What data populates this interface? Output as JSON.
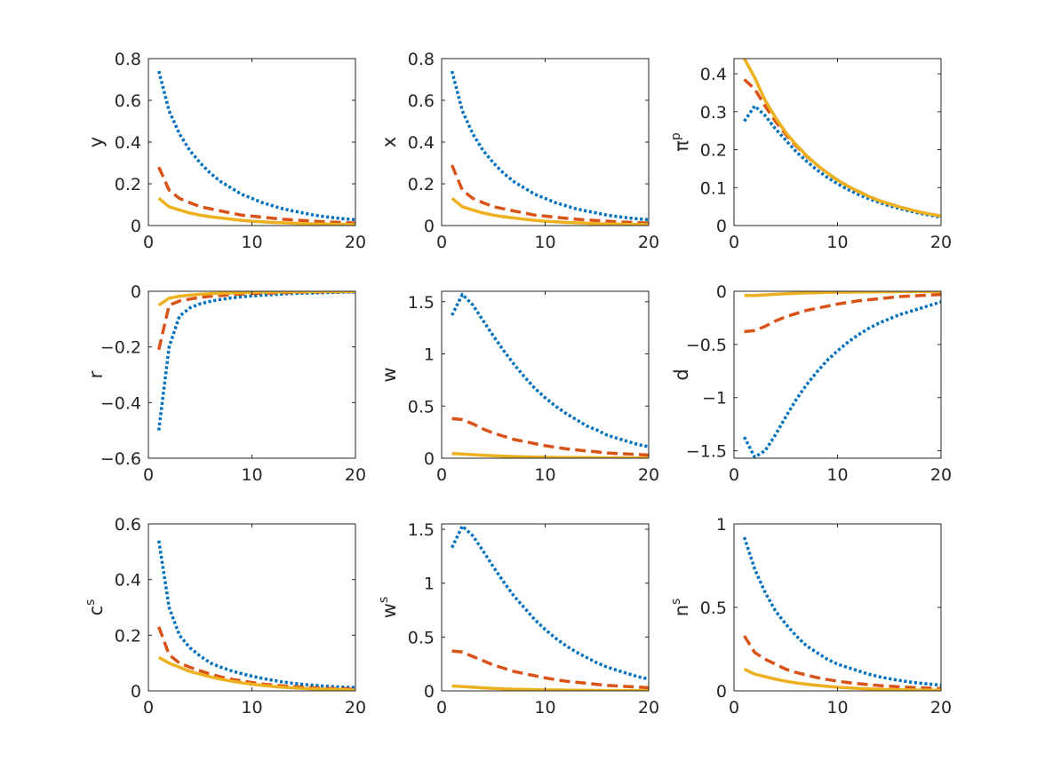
{
  "chart_data": [
    {
      "type": "line",
      "ylabel": "y",
      "ylabel_sup": "",
      "xlim": [
        0,
        20
      ],
      "ylim": [
        0,
        0.8
      ],
      "xticks": [
        "0",
        "10",
        "20"
      ],
      "yticks": [
        0,
        0.2,
        0.4,
        0.6,
        0.8
      ],
      "yticklabels": [
        "0",
        "0.2",
        "0.4",
        "0.6",
        "0.8"
      ],
      "x": [
        1,
        2,
        3,
        4,
        5,
        6,
        7,
        8,
        9,
        10,
        11,
        12,
        13,
        14,
        15,
        16,
        17,
        18,
        19,
        20
      ],
      "series": [
        {
          "style": "dotted",
          "color": "#0072BD",
          "values": [
            0.74,
            0.55,
            0.44,
            0.36,
            0.3,
            0.25,
            0.21,
            0.18,
            0.15,
            0.13,
            0.11,
            0.095,
            0.08,
            0.07,
            0.06,
            0.05,
            0.043,
            0.037,
            0.032,
            0.028
          ]
        },
        {
          "style": "dashed",
          "color": "#D95319",
          "values": [
            0.28,
            0.17,
            0.13,
            0.11,
            0.09,
            0.08,
            0.07,
            0.06,
            0.05,
            0.045,
            0.04,
            0.035,
            0.03,
            0.027,
            0.024,
            0.021,
            0.018,
            0.016,
            0.014,
            0.012
          ]
        },
        {
          "style": "solid",
          "color": "#EDB120",
          "values": [
            0.13,
            0.09,
            0.075,
            0.06,
            0.05,
            0.042,
            0.036,
            0.03,
            0.025,
            0.021,
            0.018,
            0.015,
            0.013,
            0.011,
            0.009,
            0.008,
            0.007,
            0.006,
            0.005,
            0.004
          ]
        }
      ]
    },
    {
      "type": "line",
      "ylabel": "x",
      "ylabel_sup": "",
      "xlim": [
        0,
        20
      ],
      "ylim": [
        0,
        0.8
      ],
      "xticks": [
        "0",
        "10",
        "20"
      ],
      "yticks": [
        0,
        0.2,
        0.4,
        0.6,
        0.8
      ],
      "yticklabels": [
        "0",
        "0.2",
        "0.4",
        "0.6",
        "0.8"
      ],
      "x": [
        1,
        2,
        3,
        4,
        5,
        6,
        7,
        8,
        9,
        10,
        11,
        12,
        13,
        14,
        15,
        16,
        17,
        18,
        19,
        20
      ],
      "series": [
        {
          "style": "dotted",
          "color": "#0072BD",
          "values": [
            0.74,
            0.55,
            0.44,
            0.36,
            0.3,
            0.25,
            0.21,
            0.18,
            0.15,
            0.13,
            0.11,
            0.095,
            0.08,
            0.07,
            0.06,
            0.05,
            0.043,
            0.037,
            0.032,
            0.028
          ]
        },
        {
          "style": "dashed",
          "color": "#D95319",
          "values": [
            0.29,
            0.17,
            0.13,
            0.11,
            0.09,
            0.08,
            0.07,
            0.06,
            0.05,
            0.045,
            0.04,
            0.035,
            0.03,
            0.027,
            0.024,
            0.021,
            0.018,
            0.016,
            0.014,
            0.012
          ]
        },
        {
          "style": "solid",
          "color": "#EDB120",
          "values": [
            0.13,
            0.09,
            0.075,
            0.06,
            0.05,
            0.042,
            0.036,
            0.03,
            0.025,
            0.021,
            0.018,
            0.015,
            0.013,
            0.011,
            0.009,
            0.008,
            0.007,
            0.006,
            0.005,
            0.004
          ]
        }
      ]
    },
    {
      "type": "line",
      "ylabel": "π",
      "ylabel_sup": "p",
      "xlim": [
        0,
        20
      ],
      "ylim": [
        0,
        0.44
      ],
      "xticks": [
        "0",
        "10",
        "20"
      ],
      "yticks": [
        0,
        0.1,
        0.2,
        0.3,
        0.4
      ],
      "yticklabels": [
        "0",
        "0.1",
        "0.2",
        "0.3",
        "0.4"
      ],
      "x": [
        1,
        2,
        3,
        4,
        5,
        6,
        7,
        8,
        9,
        10,
        11,
        12,
        13,
        14,
        15,
        16,
        17,
        18,
        19,
        20
      ],
      "series": [
        {
          "style": "dotted",
          "color": "#0072BD",
          "values": [
            0.275,
            0.315,
            0.29,
            0.255,
            0.225,
            0.195,
            0.17,
            0.147,
            0.127,
            0.11,
            0.095,
            0.082,
            0.071,
            0.061,
            0.052,
            0.045,
            0.038,
            0.032,
            0.027,
            0.022
          ]
        },
        {
          "style": "dashed",
          "color": "#D95319",
          "values": [
            0.385,
            0.36,
            0.315,
            0.275,
            0.24,
            0.21,
            0.183,
            0.16,
            0.138,
            0.12,
            0.104,
            0.09,
            0.077,
            0.066,
            0.057,
            0.049,
            0.042,
            0.035,
            0.03,
            0.025
          ]
        },
        {
          "style": "solid",
          "color": "#EDB120",
          "values": [
            0.44,
            0.39,
            0.33,
            0.285,
            0.245,
            0.213,
            0.185,
            0.16,
            0.139,
            0.12,
            0.104,
            0.09,
            0.077,
            0.066,
            0.057,
            0.049,
            0.042,
            0.035,
            0.03,
            0.025
          ]
        }
      ]
    },
    {
      "type": "line",
      "ylabel": "r",
      "ylabel_sup": "",
      "xlim": [
        0,
        20
      ],
      "ylim": [
        -0.6,
        0
      ],
      "xticks": [
        "0",
        "10",
        "20"
      ],
      "yticks": [
        -0.6,
        -0.4,
        -0.2,
        0
      ],
      "yticklabels": [
        "−0.6",
        "−0.4",
        "−0.2",
        "0"
      ],
      "x": [
        1,
        2,
        3,
        4,
        5,
        6,
        7,
        8,
        9,
        10,
        11,
        12,
        13,
        14,
        15,
        16,
        17,
        18,
        19,
        20
      ],
      "series": [
        {
          "style": "dotted",
          "color": "#0072BD",
          "values": [
            -0.5,
            -0.2,
            -0.09,
            -0.06,
            -0.045,
            -0.036,
            -0.029,
            -0.024,
            -0.02,
            -0.017,
            -0.014,
            -0.012,
            -0.01,
            -0.008,
            -0.007,
            -0.006,
            -0.005,
            -0.004,
            -0.003,
            -0.003
          ]
        },
        {
          "style": "dashed",
          "color": "#D95319",
          "values": [
            -0.21,
            -0.05,
            -0.035,
            -0.028,
            -0.022,
            -0.018,
            -0.015,
            -0.012,
            -0.01,
            -0.008,
            -0.007,
            -0.006,
            -0.005,
            -0.004,
            -0.003,
            -0.003,
            -0.002,
            -0.002,
            -0.002,
            -0.001
          ]
        },
        {
          "style": "solid",
          "color": "#EDB120",
          "values": [
            -0.05,
            -0.025,
            -0.018,
            -0.014,
            -0.011,
            -0.009,
            -0.007,
            -0.006,
            -0.005,
            -0.004,
            -0.003,
            -0.003,
            -0.002,
            -0.002,
            -0.002,
            -0.001,
            -0.001,
            -0.001,
            -0.001,
            -0.001
          ]
        }
      ]
    },
    {
      "type": "line",
      "ylabel": "w",
      "ylabel_sup": "",
      "xlim": [
        0,
        20
      ],
      "ylim": [
        0,
        1.6
      ],
      "xticks": [
        "0",
        "10",
        "20"
      ],
      "yticks": [
        0,
        0.5,
        1,
        1.5
      ],
      "yticklabels": [
        "0",
        "0.5",
        "1",
        "1.5"
      ],
      "x": [
        1,
        2,
        3,
        4,
        5,
        6,
        7,
        8,
        9,
        10,
        11,
        12,
        13,
        14,
        15,
        16,
        17,
        18,
        19,
        20
      ],
      "series": [
        {
          "style": "dotted",
          "color": "#0072BD",
          "values": [
            1.37,
            1.57,
            1.47,
            1.32,
            1.17,
            1.03,
            0.9,
            0.78,
            0.67,
            0.58,
            0.5,
            0.43,
            0.37,
            0.31,
            0.27,
            0.22,
            0.19,
            0.16,
            0.13,
            0.11
          ]
        },
        {
          "style": "dashed",
          "color": "#D95319",
          "values": [
            0.38,
            0.37,
            0.33,
            0.28,
            0.24,
            0.21,
            0.18,
            0.16,
            0.14,
            0.12,
            0.105,
            0.09,
            0.08,
            0.07,
            0.06,
            0.05,
            0.045,
            0.04,
            0.035,
            0.03
          ]
        },
        {
          "style": "solid",
          "color": "#EDB120",
          "values": [
            0.045,
            0.04,
            0.034,
            0.028,
            0.023,
            0.019,
            0.016,
            0.013,
            0.011,
            0.009,
            0.008,
            0.007,
            0.006,
            0.005,
            0.004,
            0.003,
            0.003,
            0.002,
            0.002,
            0.002
          ]
        }
      ]
    },
    {
      "type": "line",
      "ylabel": "d",
      "ylabel_sup": "",
      "xlim": [
        0,
        20
      ],
      "ylim": [
        -1.57,
        0
      ],
      "xticks": [
        "0",
        "10",
        "20"
      ],
      "yticks": [
        -1.5,
        -1,
        -0.5,
        0
      ],
      "yticklabels": [
        "−1.5",
        "−1",
        "−0.5",
        "0"
      ],
      "x": [
        1,
        2,
        3,
        4,
        5,
        6,
        7,
        8,
        9,
        10,
        11,
        12,
        13,
        14,
        15,
        16,
        17,
        18,
        19,
        20
      ],
      "series": [
        {
          "style": "dotted",
          "color": "#0072BD",
          "values": [
            -1.37,
            -1.56,
            -1.5,
            -1.35,
            -1.18,
            -1.02,
            -0.88,
            -0.76,
            -0.65,
            -0.56,
            -0.48,
            -0.41,
            -0.35,
            -0.3,
            -0.26,
            -0.22,
            -0.19,
            -0.16,
            -0.13,
            -0.1
          ]
        },
        {
          "style": "dashed",
          "color": "#D95319",
          "values": [
            -0.38,
            -0.37,
            -0.33,
            -0.28,
            -0.24,
            -0.21,
            -0.18,
            -0.16,
            -0.14,
            -0.12,
            -0.105,
            -0.09,
            -0.08,
            -0.07,
            -0.06,
            -0.05,
            -0.045,
            -0.04,
            -0.035,
            -0.03
          ]
        },
        {
          "style": "solid",
          "color": "#EDB120",
          "values": [
            -0.04,
            -0.04,
            -0.034,
            -0.028,
            -0.023,
            -0.019,
            -0.016,
            -0.013,
            -0.011,
            -0.009,
            -0.008,
            -0.007,
            -0.006,
            -0.005,
            -0.004,
            -0.003,
            -0.003,
            -0.002,
            -0.002,
            -0.002
          ]
        }
      ]
    },
    {
      "type": "line",
      "ylabel": "c",
      "ylabel_sup": "s",
      "xlim": [
        0,
        20
      ],
      "ylim": [
        0,
        0.6
      ],
      "xticks": [
        "0",
        "10",
        "20"
      ],
      "yticks": [
        0,
        0.2,
        0.4,
        0.6
      ],
      "yticklabels": [
        "0",
        "0.2",
        "0.4",
        "0.6"
      ],
      "x": [
        1,
        2,
        3,
        4,
        5,
        6,
        7,
        8,
        9,
        10,
        11,
        12,
        13,
        14,
        15,
        16,
        17,
        18,
        19,
        20
      ],
      "series": [
        {
          "style": "dotted",
          "color": "#0072BD",
          "values": [
            0.54,
            0.3,
            0.2,
            0.155,
            0.125,
            0.1,
            0.085,
            0.072,
            0.062,
            0.053,
            0.045,
            0.038,
            0.032,
            0.027,
            0.023,
            0.02,
            0.017,
            0.015,
            0.013,
            0.012
          ]
        },
        {
          "style": "dashed",
          "color": "#D95319",
          "values": [
            0.23,
            0.13,
            0.1,
            0.085,
            0.072,
            0.06,
            0.05,
            0.042,
            0.036,
            0.03,
            0.025,
            0.021,
            0.018,
            0.015,
            0.013,
            0.011,
            0.009,
            0.008,
            0.007,
            0.006
          ]
        },
        {
          "style": "solid",
          "color": "#EDB120",
          "values": [
            0.12,
            0.1,
            0.085,
            0.07,
            0.06,
            0.05,
            0.042,
            0.035,
            0.029,
            0.024,
            0.02,
            0.016,
            0.013,
            0.011,
            0.009,
            0.007,
            0.006,
            0.005,
            0.004,
            0.003
          ]
        }
      ]
    },
    {
      "type": "line",
      "ylabel": "w",
      "ylabel_sup": "s",
      "xlim": [
        0,
        20
      ],
      "ylim": [
        0,
        1.55
      ],
      "xticks": [
        "0",
        "10",
        "20"
      ],
      "yticks": [
        0,
        0.5,
        1,
        1.5
      ],
      "yticklabels": [
        "0",
        "0.5",
        "1",
        "1.5"
      ],
      "x": [
        1,
        2,
        3,
        4,
        5,
        6,
        7,
        8,
        9,
        10,
        11,
        12,
        13,
        14,
        15,
        16,
        17,
        18,
        19,
        20
      ],
      "series": [
        {
          "style": "dotted",
          "color": "#0072BD",
          "values": [
            1.33,
            1.53,
            1.44,
            1.3,
            1.15,
            1.01,
            0.88,
            0.77,
            0.66,
            0.57,
            0.49,
            0.42,
            0.36,
            0.31,
            0.26,
            0.22,
            0.19,
            0.16,
            0.13,
            0.11
          ]
        },
        {
          "style": "dashed",
          "color": "#D95319",
          "values": [
            0.37,
            0.36,
            0.32,
            0.28,
            0.24,
            0.21,
            0.18,
            0.16,
            0.14,
            0.12,
            0.105,
            0.09,
            0.08,
            0.07,
            0.06,
            0.05,
            0.045,
            0.04,
            0.035,
            0.03
          ]
        },
        {
          "style": "solid",
          "color": "#EDB120",
          "values": [
            0.045,
            0.04,
            0.034,
            0.028,
            0.023,
            0.019,
            0.016,
            0.013,
            0.011,
            0.009,
            0.008,
            0.007,
            0.006,
            0.005,
            0.004,
            0.003,
            0.003,
            0.002,
            0.002,
            0.002
          ]
        }
      ]
    },
    {
      "type": "line",
      "ylabel": "n",
      "ylabel_sup": "s",
      "xlim": [
        0,
        20
      ],
      "ylim": [
        0,
        1
      ],
      "xticks": [
        "0",
        "10",
        "20"
      ],
      "yticks": [
        0,
        0.5,
        1
      ],
      "yticklabels": [
        "0",
        "0.5",
        "1"
      ],
      "x": [
        1,
        2,
        3,
        4,
        5,
        6,
        7,
        8,
        9,
        10,
        11,
        12,
        13,
        14,
        15,
        16,
        17,
        18,
        19,
        20
      ],
      "series": [
        {
          "style": "dotted",
          "color": "#0072BD",
          "values": [
            0.92,
            0.73,
            0.59,
            0.48,
            0.4,
            0.33,
            0.27,
            0.23,
            0.19,
            0.16,
            0.14,
            0.12,
            0.1,
            0.085,
            0.073,
            0.062,
            0.053,
            0.046,
            0.04,
            0.034
          ]
        },
        {
          "style": "dashed",
          "color": "#D95319",
          "values": [
            0.33,
            0.23,
            0.19,
            0.16,
            0.13,
            0.11,
            0.095,
            0.08,
            0.068,
            0.058,
            0.05,
            0.043,
            0.037,
            0.032,
            0.028,
            0.024,
            0.021,
            0.018,
            0.016,
            0.014
          ]
        },
        {
          "style": "solid",
          "color": "#EDB120",
          "values": [
            0.13,
            0.1,
            0.085,
            0.07,
            0.058,
            0.048,
            0.04,
            0.033,
            0.027,
            0.022,
            0.018,
            0.015,
            0.012,
            0.01,
            0.008,
            0.007,
            0.006,
            0.005,
            0.004,
            0.003
          ]
        }
      ]
    }
  ]
}
